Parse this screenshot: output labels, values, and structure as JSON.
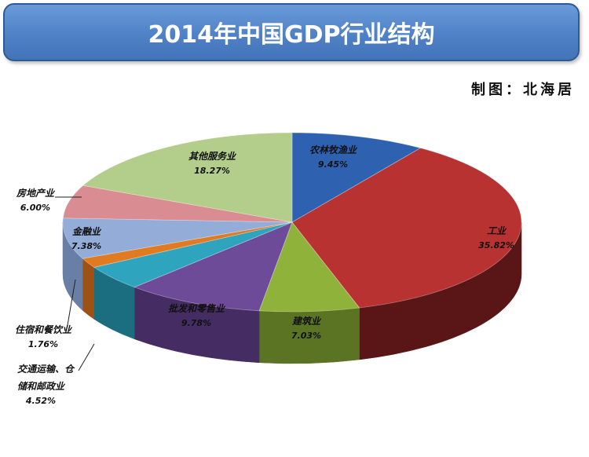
{
  "header": {
    "title": "2014年中国GDP行业结构",
    "credit": "制图：北海居"
  },
  "colors": {
    "banner": "#4f81c7",
    "agriculture": "#2e62b0",
    "industry": "#b83232",
    "construction": "#8fb23a",
    "trade": "#6e4b98",
    "transport": "#2fa4be",
    "hospitality": "#e07b22",
    "finance": "#93acd8",
    "real_estate": "#d98d92",
    "other": "#b3cd8a"
  },
  "chart_data": {
    "type": "pie",
    "style": "3d",
    "title": "2014年中国GDP行业结构",
    "slices": [
      {
        "key": "agriculture",
        "name": "农林牧渔业",
        "value": 9.45,
        "label": "9.45%",
        "color": "#2e62b0",
        "side": "#1c3f73"
      },
      {
        "key": "industry",
        "name": "工业",
        "value": 35.82,
        "label": "35.82%",
        "color": "#b83232",
        "side": "#5a1616"
      },
      {
        "key": "construction",
        "name": "建筑业",
        "value": 7.03,
        "label": "7.03%",
        "color": "#8fb23a",
        "side": "#5a7424"
      },
      {
        "key": "trade",
        "name": "批发和零售业",
        "value": 9.78,
        "label": "9.78%",
        "color": "#6e4b98",
        "side": "#452d63"
      },
      {
        "key": "transport",
        "name": "交通运输、仓储和邮政业",
        "value": 4.52,
        "label": "4.52%",
        "color": "#2fa4be",
        "side": "#1b6e80"
      },
      {
        "key": "hospitality",
        "name": "住宿和餐饮业",
        "value": 1.76,
        "label": "1.76%",
        "color": "#e07b22",
        "side": "#9c5215"
      },
      {
        "key": "finance",
        "name": "金融业",
        "value": 7.38,
        "label": "7.38%",
        "color": "#93acd8",
        "side": "#6a7fa6"
      },
      {
        "key": "real_estate",
        "name": "房地产业",
        "value": 6.0,
        "label": "6.00%",
        "color": "#d98d92",
        "side": "#a4585e"
      },
      {
        "key": "other",
        "name": "其他服务业",
        "value": 18.27,
        "label": "18.27%",
        "color": "#b3cd8a",
        "side": "#7e9a5a"
      }
    ]
  },
  "labels": {
    "agriculture": {
      "name": "农林牧渔业",
      "value": "9.45%"
    },
    "industry": {
      "name": "工业",
      "value": "35.82%"
    },
    "construction": {
      "name": "建筑业",
      "value": "7.03%"
    },
    "trade": {
      "name": "批发和零售业",
      "value": "9.78%"
    },
    "transport": {
      "name_line1": "交通运输、仓",
      "name_line2": "储和邮政业",
      "value": "4.52%"
    },
    "hospitality": {
      "name": "住宿和餐饮业",
      "value": "1.76%"
    },
    "finance": {
      "name": "金融业",
      "value": "7.38%"
    },
    "real_estate": {
      "name": "房地产业",
      "value": "6.00%"
    },
    "other": {
      "name": "其他服务业",
      "value": "18.27%"
    }
  }
}
